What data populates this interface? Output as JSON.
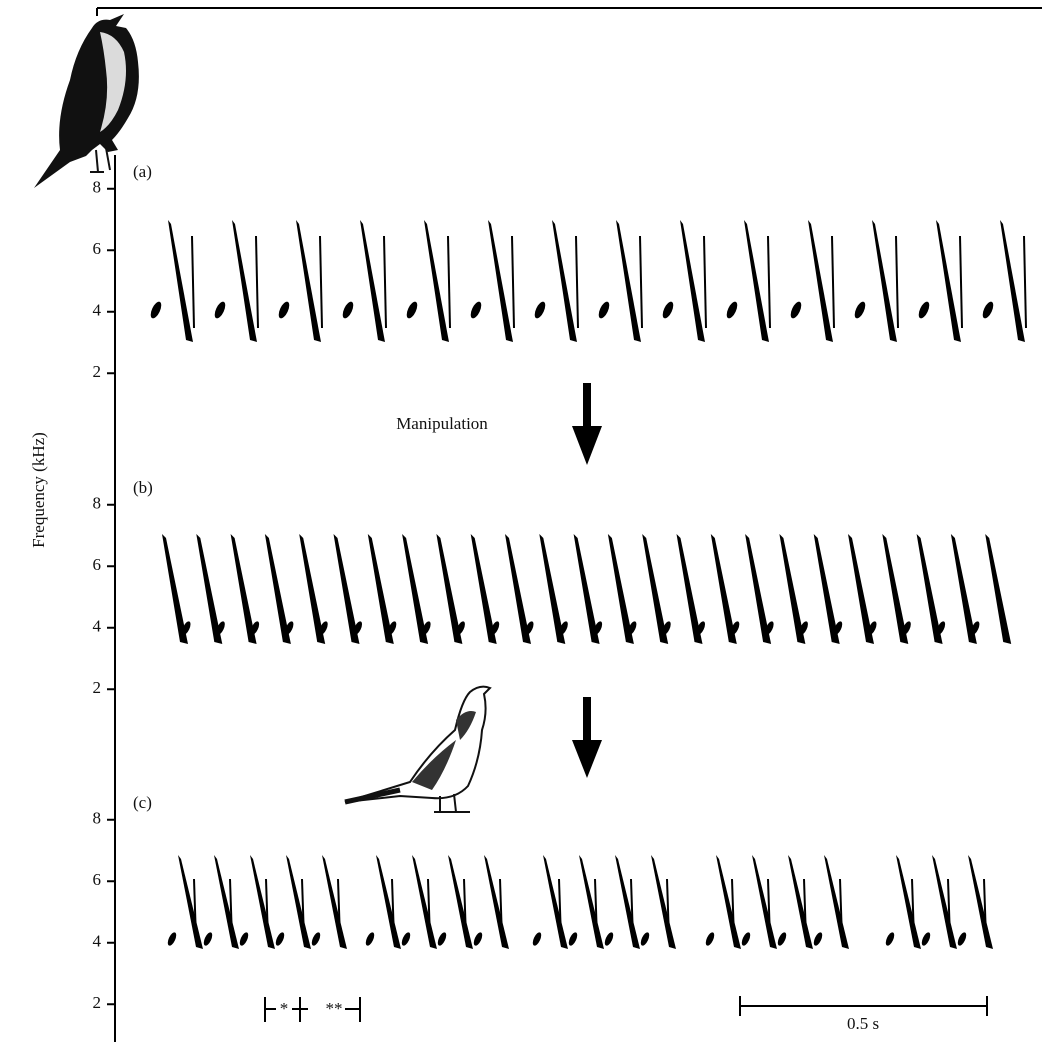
{
  "y_label": "Frequency (kHz)",
  "annotation": "Manipulation",
  "scale_bar": "0.5 s",
  "phrase_marks": [
    "*",
    "**"
  ],
  "chart_data": [
    {
      "type": "spectrogram",
      "panel": "(a)",
      "ylim": [
        1,
        9
      ],
      "yticks": [
        2,
        4,
        6,
        8
      ]
    },
    {
      "type": "spectrogram",
      "panel": "(b)",
      "ylim": [
        1,
        9
      ],
      "yticks": [
        2,
        4,
        6,
        8
      ]
    },
    {
      "type": "spectrogram",
      "panel": "(c)",
      "ylim": [
        1,
        9
      ],
      "yticks": [
        2,
        4,
        6,
        8
      ]
    }
  ]
}
